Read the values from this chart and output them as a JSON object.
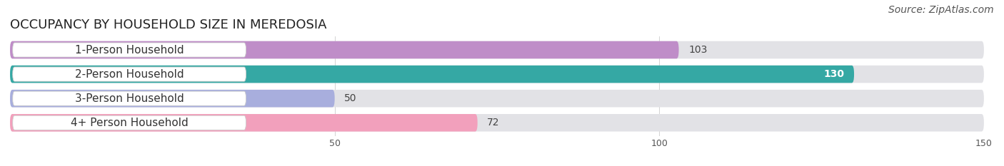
{
  "title": "OCCUPANCY BY HOUSEHOLD SIZE IN MEREDOSIA",
  "source": "Source: ZipAtlas.com",
  "categories": [
    "1-Person Household",
    "2-Person Household",
    "3-Person Household",
    "4+ Person Household"
  ],
  "values": [
    103,
    130,
    50,
    72
  ],
  "bar_colors": [
    "#bf8dc8",
    "#35a8a4",
    "#a8aedd",
    "#f2a0bc"
  ],
  "bar_bg_color": "#e2e2e6",
  "label_bg_color": "#ffffff",
  "xlim": [
    0,
    150
  ],
  "xticks": [
    50,
    100,
    150
  ],
  "title_fontsize": 13,
  "label_fontsize": 11,
  "value_fontsize": 10,
  "source_fontsize": 10,
  "background_color": "#ffffff",
  "row_bg_color": "#f0f0f4"
}
